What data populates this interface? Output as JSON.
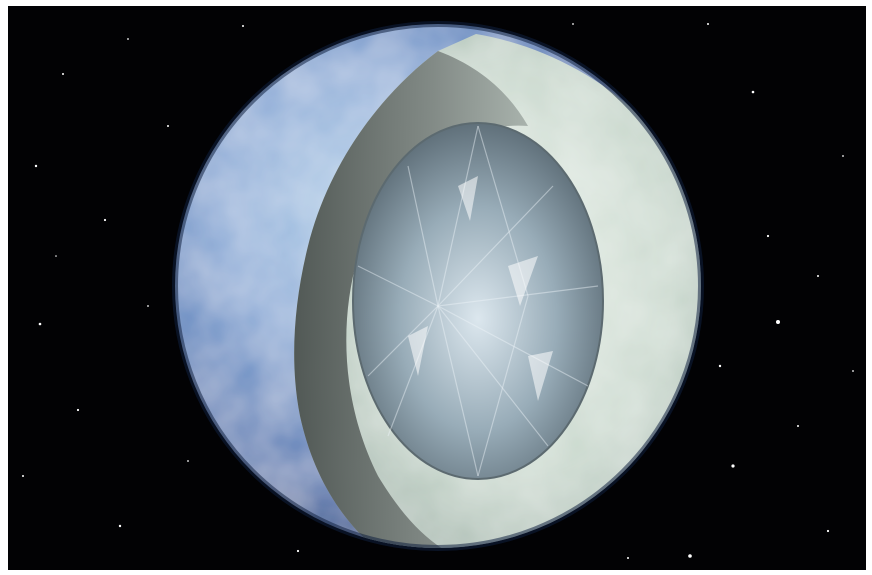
{
  "scene": {
    "subject": "planet-cutaway",
    "colors": {
      "background_space": "#020204",
      "frame": "#ffffff",
      "outer_shell": "#6f92c4",
      "middle_layer": "#c9d6cf",
      "inner_layer_shadow": "#6b706d",
      "core_crystal": "#a9bcc8"
    },
    "icons": [
      "star-icon",
      "crystal-core-icon"
    ]
  }
}
